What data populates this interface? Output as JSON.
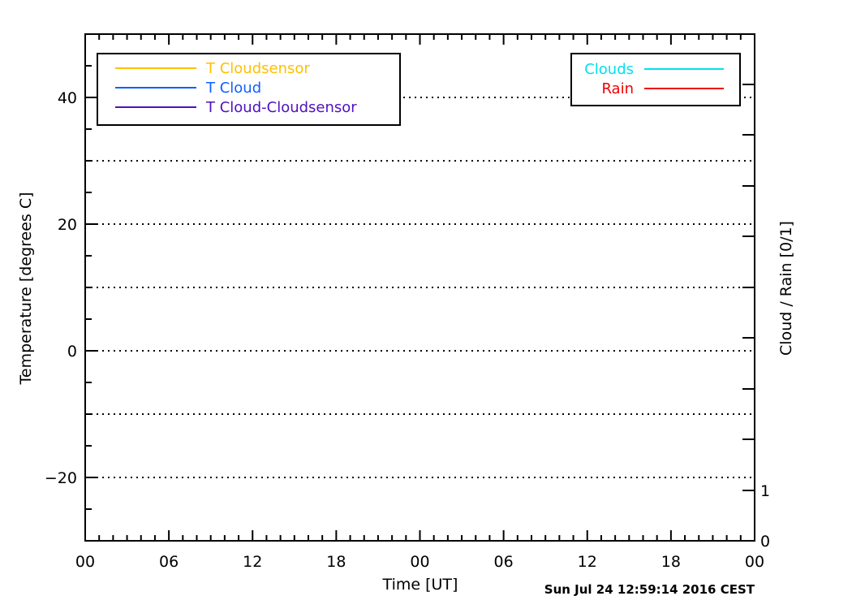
{
  "chart_data": {
    "type": "line",
    "title": "",
    "xlabel": "Time [UT]",
    "ylabel_left": "Temperature [degrees C]",
    "ylabel_right": "Cloud / Rain [0/1]",
    "timestamp": "Sun Jul 24 12:59:14 2016 CEST",
    "x_ticks": [
      "00",
      "06",
      "12",
      "18",
      "00",
      "06",
      "12",
      "18",
      "00"
    ],
    "xlim_hours": [
      0,
      48
    ],
    "ylim_left": [
      -30,
      50
    ],
    "y_ticks_left": [
      -20,
      0,
      20,
      40
    ],
    "ylim_right": [
      0,
      1
    ],
    "y_ticks_right": [
      "0",
      "1"
    ],
    "grid_y": [
      -20,
      -10,
      0,
      10,
      20,
      30,
      40
    ],
    "grid": "dotted horizontal",
    "series": [
      {
        "name": "T Cloudsensor",
        "color": "#ffc000",
        "x": [],
        "y": []
      },
      {
        "name": "T Cloud",
        "color": "#1060ff",
        "x": [],
        "y": []
      },
      {
        "name": "T Cloud-Cloudsensor",
        "color": "#5010c0",
        "x": [],
        "y": []
      },
      {
        "name": "Clouds",
        "color": "#00e0f0",
        "x": [],
        "y": []
      },
      {
        "name": "Rain",
        "color": "#f00000",
        "x": [],
        "y": []
      }
    ],
    "legend_left": [
      "T Cloudsensor",
      "T Cloud",
      "T Cloud-Cloudsensor"
    ],
    "legend_right": [
      "Clouds",
      "Rain"
    ],
    "legend_placement": [
      "top-left",
      "top-right"
    ]
  }
}
